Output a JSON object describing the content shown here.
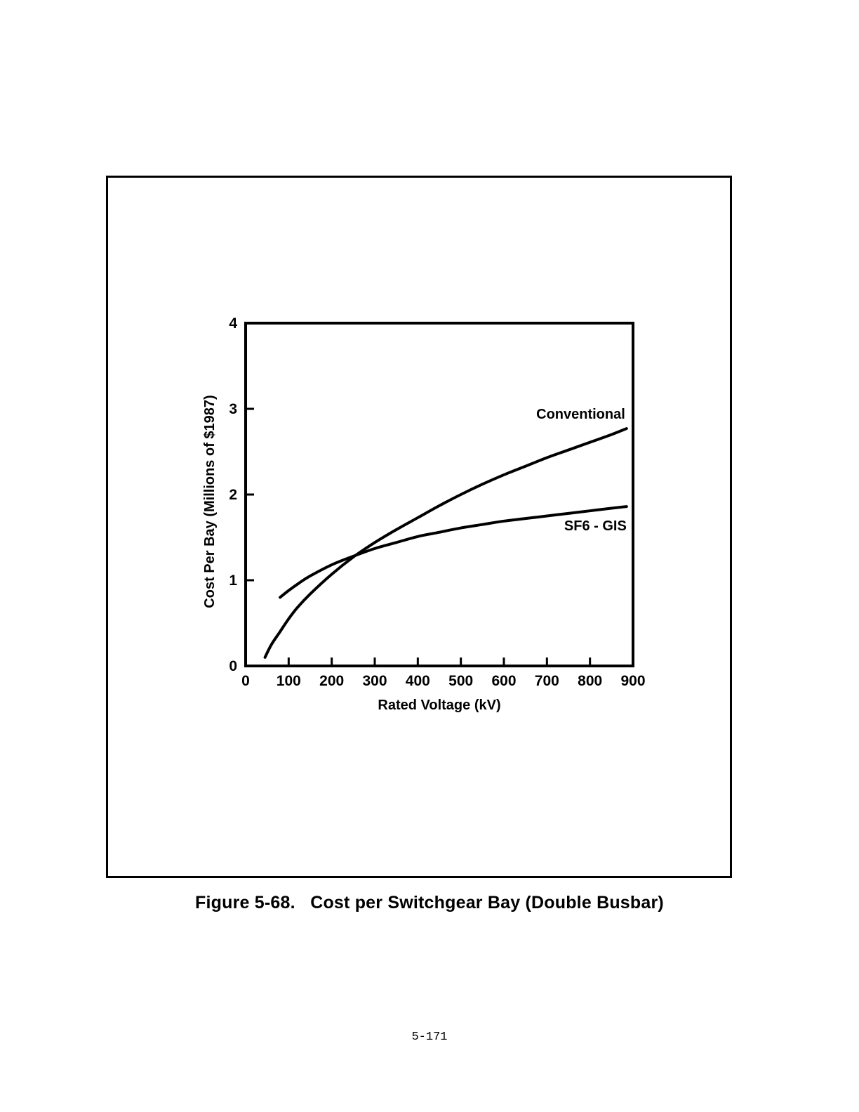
{
  "figure": {
    "caption": "Figure 5-68.   Cost per Switchgear Bay (Double Busbar)"
  },
  "page": {
    "number": "5-171"
  },
  "chart_data": {
    "type": "line",
    "xlabel": "Rated Voltage (kV)",
    "ylabel": "Cost Per Bay (Millions of $1987)",
    "xlim": [
      0,
      900
    ],
    "ylim": [
      0,
      4
    ],
    "xticks": [
      0,
      100,
      200,
      300,
      400,
      500,
      600,
      700,
      800,
      900
    ],
    "yticks": [
      0,
      1,
      2,
      3,
      4
    ],
    "grid": false,
    "legend": "inline labels at right end of curves",
    "series": [
      {
        "name": "Conventional",
        "color": "#000000",
        "x": [
          45,
          60,
          80,
          100,
          120,
          150,
          200,
          250,
          300,
          350,
          400,
          450,
          500,
          550,
          600,
          650,
          700,
          750,
          800,
          850,
          885
        ],
        "y": [
          0.1,
          0.25,
          0.4,
          0.55,
          0.68,
          0.84,
          1.07,
          1.27,
          1.44,
          1.59,
          1.73,
          1.87,
          2.0,
          2.12,
          2.23,
          2.33,
          2.43,
          2.52,
          2.61,
          2.7,
          2.77
        ]
      },
      {
        "name": "SF6 - GIS",
        "color": "#000000",
        "x": [
          80,
          100,
          125,
          150,
          200,
          250,
          300,
          350,
          400,
          450,
          500,
          550,
          600,
          650,
          700,
          750,
          800,
          850,
          885
        ],
        "y": [
          0.8,
          0.88,
          0.97,
          1.05,
          1.18,
          1.28,
          1.37,
          1.44,
          1.51,
          1.56,
          1.61,
          1.65,
          1.69,
          1.72,
          1.75,
          1.78,
          1.81,
          1.84,
          1.86
        ]
      }
    ]
  }
}
